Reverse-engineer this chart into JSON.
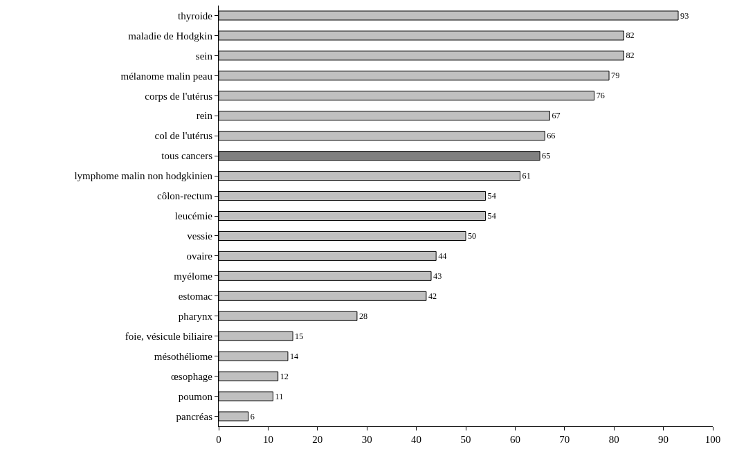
{
  "chart_data": {
    "type": "bar",
    "orientation": "horizontal",
    "categories": [
      "thyroide",
      "maladie de Hodgkin",
      "sein",
      "mélanome malin peau",
      "corps de l'utérus",
      "rein",
      "col de l'utérus",
      "tous cancers",
      "lymphome malin non hodgkinien",
      "côlon-rectum",
      "leucémie",
      "vessie",
      "ovaire",
      "myélome",
      "estomac",
      "pharynx",
      "foie, vésicule biliaire",
      "mésothéliome",
      "œsophage",
      "poumon",
      "pancréas"
    ],
    "values": [
      93,
      82,
      82,
      79,
      76,
      67,
      66,
      65,
      61,
      54,
      54,
      50,
      44,
      43,
      42,
      28,
      15,
      14,
      12,
      11,
      6
    ],
    "colors": [
      "#c0c0c0",
      "#c0c0c0",
      "#c0c0c0",
      "#c0c0c0",
      "#c0c0c0",
      "#c0c0c0",
      "#c0c0c0",
      "#808080",
      "#c0c0c0",
      "#c0c0c0",
      "#c0c0c0",
      "#c0c0c0",
      "#c0c0c0",
      "#c0c0c0",
      "#c0c0c0",
      "#c0c0c0",
      "#c0c0c0",
      "#c0c0c0",
      "#c0c0c0",
      "#c0c0c0",
      "#c0c0c0"
    ],
    "xlim": [
      0,
      100
    ],
    "xticks": [
      0,
      10,
      20,
      30,
      40,
      50,
      60,
      70,
      80,
      90,
      100
    ],
    "data_labels": true
  }
}
